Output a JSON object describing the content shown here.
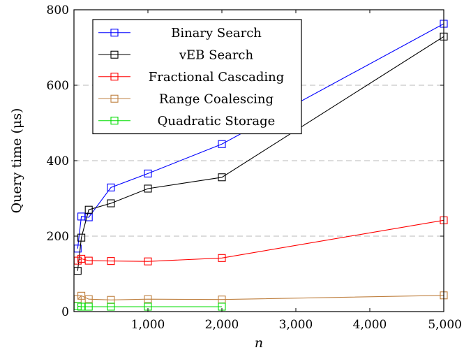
{
  "chart_data": {
    "type": "line",
    "title": "",
    "xlabel": "n",
    "ylabel": "Query time (μs)",
    "xlim": [
      0,
      5000
    ],
    "ylim": [
      0,
      800
    ],
    "x_ticks": [
      1000,
      2000,
      3000,
      4000,
      5000
    ],
    "x_tick_labels": [
      "1,000",
      "2,000",
      "3,000",
      "4,000",
      "5,000"
    ],
    "y_ticks": [
      0,
      200,
      400,
      600,
      800
    ],
    "y_tick_labels": [
      "0",
      "200",
      "400",
      "600",
      "800"
    ],
    "grid": "horizontal dashed",
    "legend_position": "top-left",
    "series": [
      {
        "name": "Binary Search",
        "color": "#0000ff",
        "points": [
          [
            50,
            167
          ],
          [
            100,
            252
          ],
          [
            200,
            250
          ],
          [
            500,
            329
          ],
          [
            1000,
            366
          ],
          [
            2000,
            444
          ],
          [
            5000,
            763
          ]
        ]
      },
      {
        "name": "vEB Search",
        "color": "#000000",
        "points": [
          [
            50,
            108
          ],
          [
            100,
            196
          ],
          [
            200,
            270
          ],
          [
            500,
            287
          ],
          [
            1000,
            326
          ],
          [
            2000,
            356
          ],
          [
            5000,
            729
          ]
        ]
      },
      {
        "name": "Fractional Cascading",
        "color": "#ff0000",
        "points": [
          [
            50,
            135
          ],
          [
            100,
            140
          ],
          [
            200,
            135
          ],
          [
            500,
            134
          ],
          [
            1000,
            133
          ],
          [
            2000,
            142
          ],
          [
            5000,
            242
          ]
        ]
      },
      {
        "name": "Range Coalescing",
        "color": "#bf8040",
        "points": [
          [
            50,
            33
          ],
          [
            100,
            42
          ],
          [
            200,
            33
          ],
          [
            500,
            31
          ],
          [
            1000,
            33
          ],
          [
            2000,
            32
          ],
          [
            5000,
            43
          ]
        ]
      },
      {
        "name": "Quadratic Storage",
        "color": "#00dd00",
        "points": [
          [
            50,
            14
          ],
          [
            100,
            13
          ],
          [
            200,
            13
          ],
          [
            500,
            13
          ],
          [
            1000,
            13
          ],
          [
            2000,
            13
          ]
        ]
      }
    ]
  }
}
